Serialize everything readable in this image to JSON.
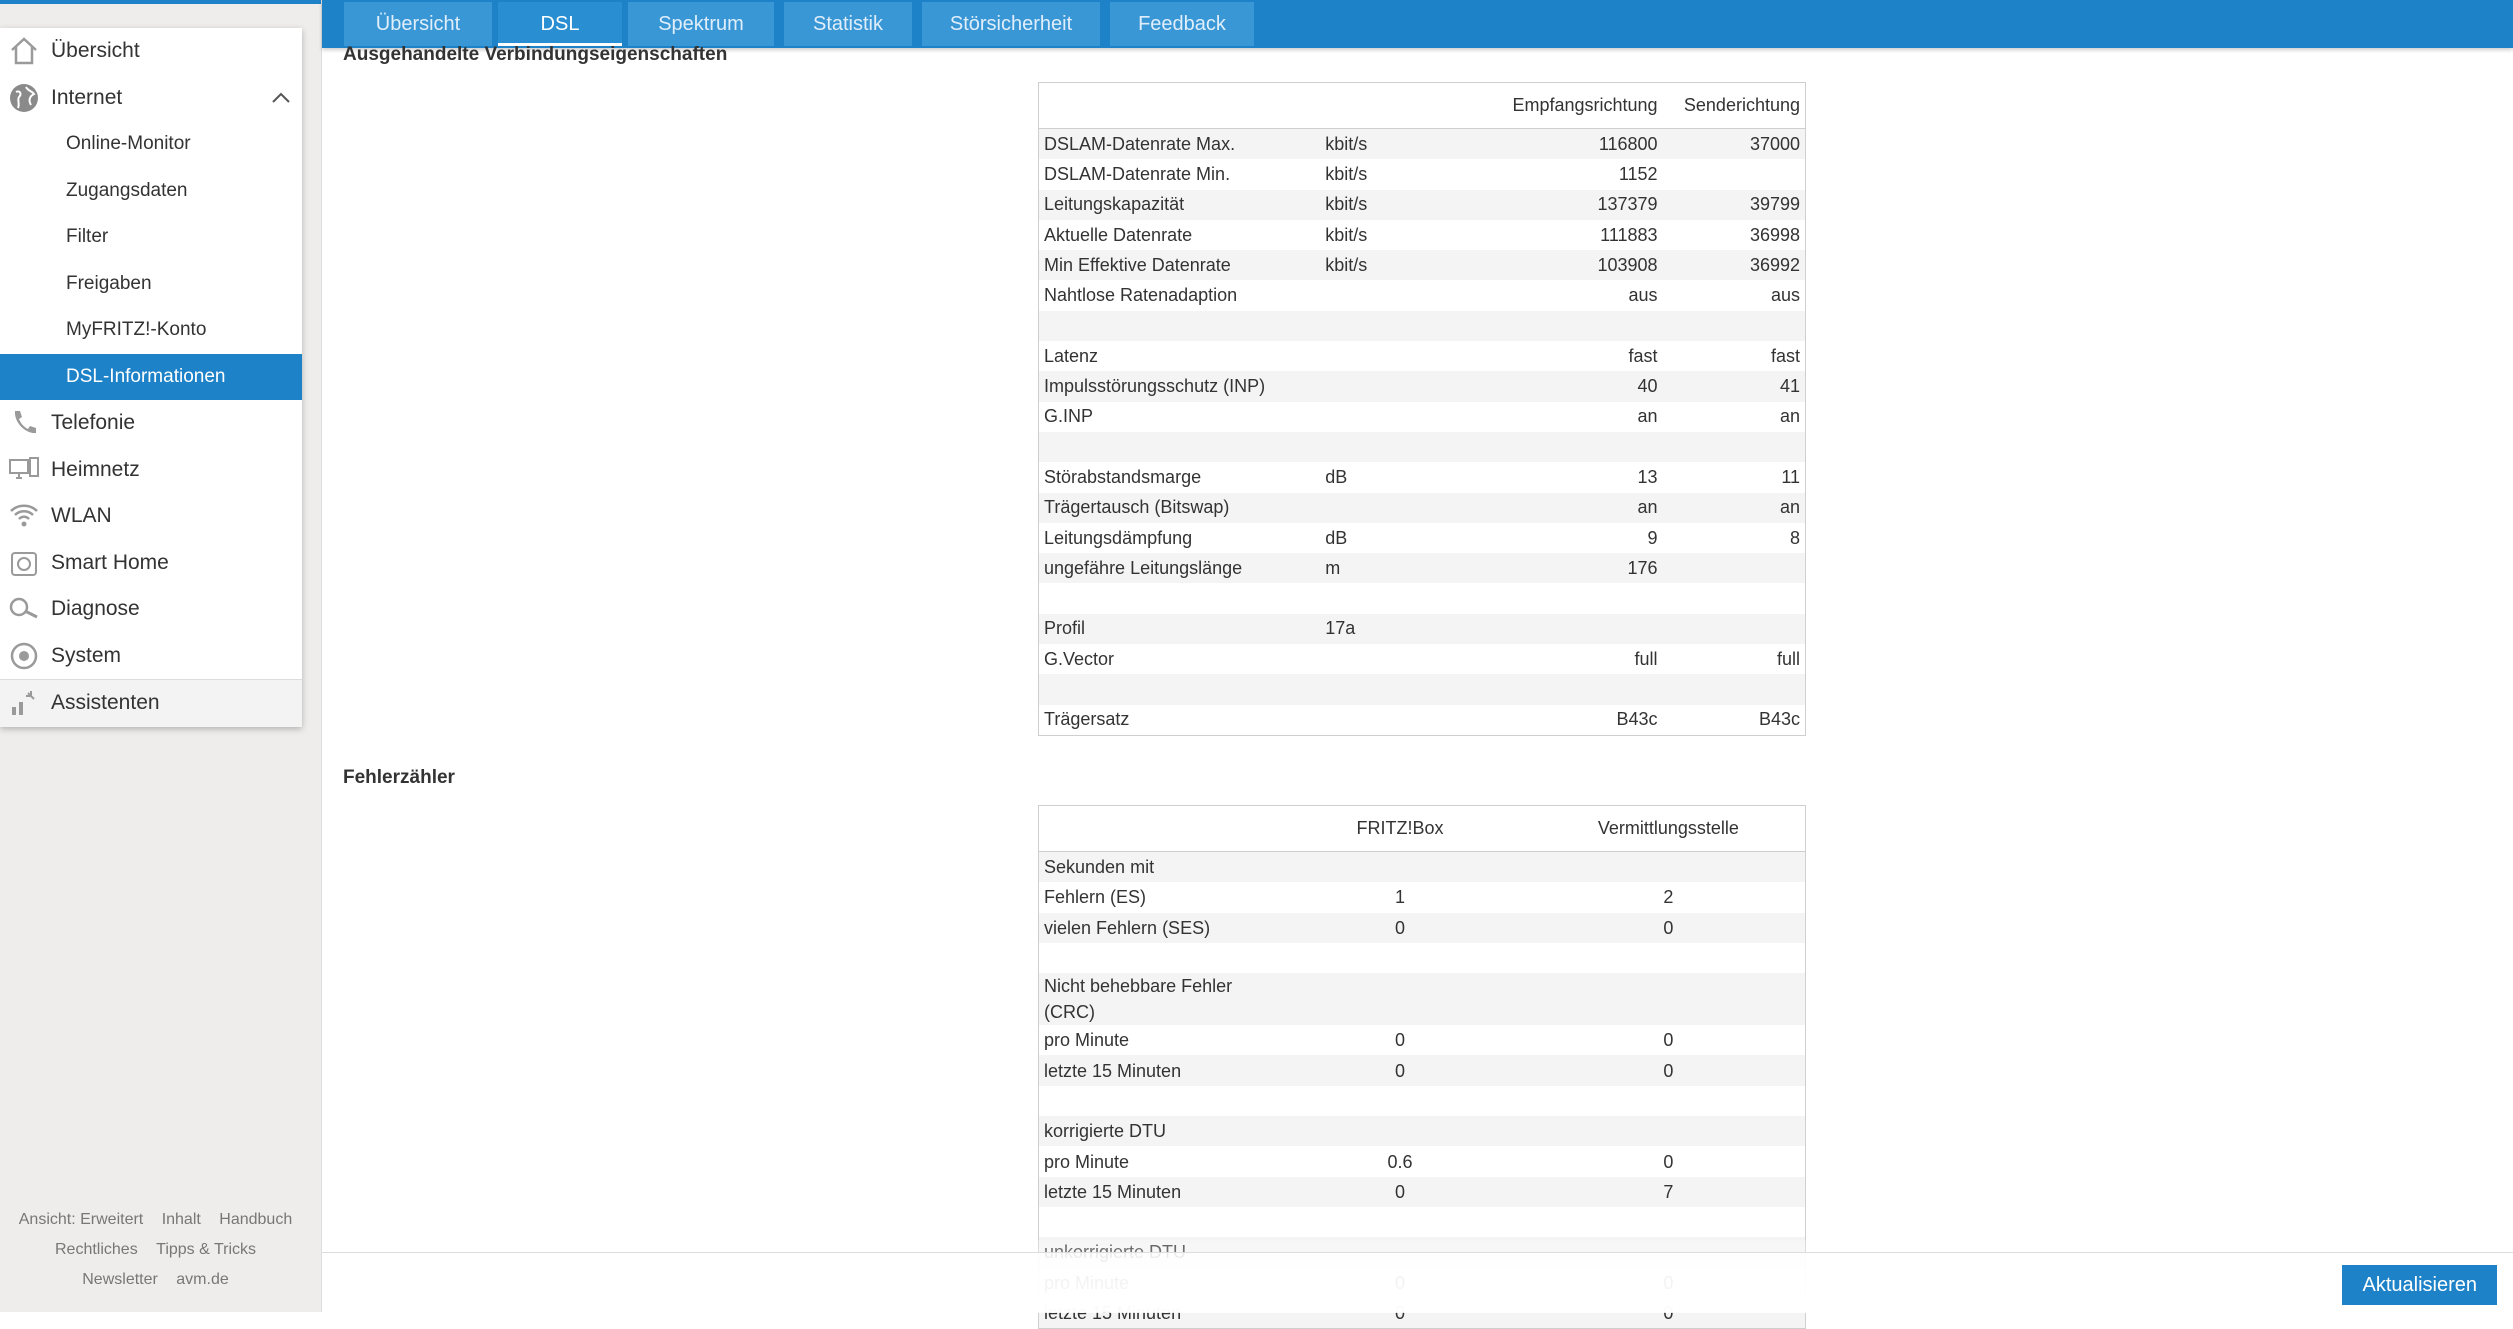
{
  "nav": {
    "items": [
      {
        "label": "Übersicht",
        "icon": "home-icon"
      },
      {
        "label": "Internet",
        "icon": "globe-icon"
      },
      {
        "label": "Telefonie",
        "icon": "phone-icon"
      },
      {
        "label": "Heimnetz",
        "icon": "network-icon"
      },
      {
        "label": "WLAN",
        "icon": "wifi-icon"
      },
      {
        "label": "Smart Home",
        "icon": "smart-home-icon"
      },
      {
        "label": "Diagnose",
        "icon": "diagnose-icon"
      },
      {
        "label": "System",
        "icon": "system-icon"
      },
      {
        "label": "Assistenten",
        "icon": "wizard-icon"
      }
    ],
    "internet_sub": [
      "Online-Monitor",
      "Zugangsdaten",
      "Filter",
      "Freigaben",
      "MyFRITZ!-Konto",
      "DSL-Informationen"
    ],
    "active_sub": "DSL-Informationen"
  },
  "footer": {
    "row1": [
      "Ansicht: Erweitert",
      "Inhalt",
      "Handbuch"
    ],
    "row2": [
      "Rechtliches",
      "Tipps & Tricks"
    ],
    "row3": [
      "Newsletter",
      "avm.de"
    ]
  },
  "tabs": [
    "Übersicht",
    "DSL",
    "Spektrum",
    "Statistik",
    "Störsicherheit",
    "Feedback"
  ],
  "active_tab": "DSL",
  "section1": {
    "title": "Ausgehandelte Verbindungseigenschaften",
    "headers": [
      "",
      "",
      "Empfangsrichtung",
      "Senderichtung"
    ],
    "rows": [
      [
        "DSLAM-Datenrate Max.",
        "kbit/s",
        "116800",
        "37000"
      ],
      [
        "DSLAM-Datenrate Min.",
        "kbit/s",
        "1152",
        ""
      ],
      [
        "Leitungskapazität",
        "kbit/s",
        "137379",
        "39799"
      ],
      [
        "Aktuelle Datenrate",
        "kbit/s",
        "111883",
        "36998"
      ],
      [
        "Min Effektive Datenrate",
        "kbit/s",
        "103908",
        "36992"
      ],
      [
        "Nahtlose Ratenadaption",
        "",
        "aus",
        "aus"
      ],
      [
        "",
        "",
        "",
        ""
      ],
      [
        "Latenz",
        "",
        "fast",
        "fast"
      ],
      [
        "Impulsstörungsschutz (INP)",
        "",
        "40",
        "41"
      ],
      [
        "G.INP",
        "",
        "an",
        "an"
      ],
      [
        "",
        "",
        "",
        ""
      ],
      [
        "Störabstandsmarge",
        "dB",
        "13",
        "11"
      ],
      [
        "Trägertausch (Bitswap)",
        "",
        "an",
        "an"
      ],
      [
        "Leitungsdämpfung",
        "dB",
        "9",
        "8"
      ],
      [
        "ungefähre Leitungslänge",
        "m",
        "176",
        ""
      ],
      [
        "",
        "",
        "",
        ""
      ],
      [
        "Profil",
        "17a",
        "",
        ""
      ],
      [
        "G.Vector",
        "",
        "full",
        "full"
      ],
      [
        "",
        "",
        "",
        ""
      ],
      [
        "Trägersatz",
        "",
        "B43c",
        "B43c"
      ]
    ]
  },
  "section2": {
    "title": "Fehlerzähler",
    "headers": [
      "",
      "FRITZ!Box",
      "Vermittlungsstelle"
    ],
    "rows": [
      [
        "Sekunden mit",
        "",
        ""
      ],
      [
        "Fehlern (ES)",
        "1",
        "2"
      ],
      [
        "vielen Fehlern (SES)",
        "0",
        "0"
      ],
      [
        "",
        "",
        ""
      ],
      [
        "Nicht behebbare Fehler (CRC)",
        "",
        ""
      ],
      [
        "pro Minute",
        "0",
        "0"
      ],
      [
        "letzte 15 Minuten",
        "0",
        "0"
      ],
      [
        "",
        "",
        ""
      ],
      [
        "korrigierte DTU",
        "",
        ""
      ],
      [
        "pro Minute",
        "0.6",
        "0"
      ],
      [
        "letzte 15 Minuten",
        "0",
        "7"
      ],
      [
        "",
        "",
        ""
      ],
      [
        "unkorrigierte DTU",
        "",
        ""
      ],
      [
        "pro Minute",
        "0",
        "0"
      ],
      [
        "letzte 15 Minuten",
        "0",
        "0"
      ]
    ]
  },
  "refresh_label": "Aktualisieren",
  "colors": {
    "accent": "#1e82c8",
    "sidebar_bg": "#eeedeb"
  }
}
